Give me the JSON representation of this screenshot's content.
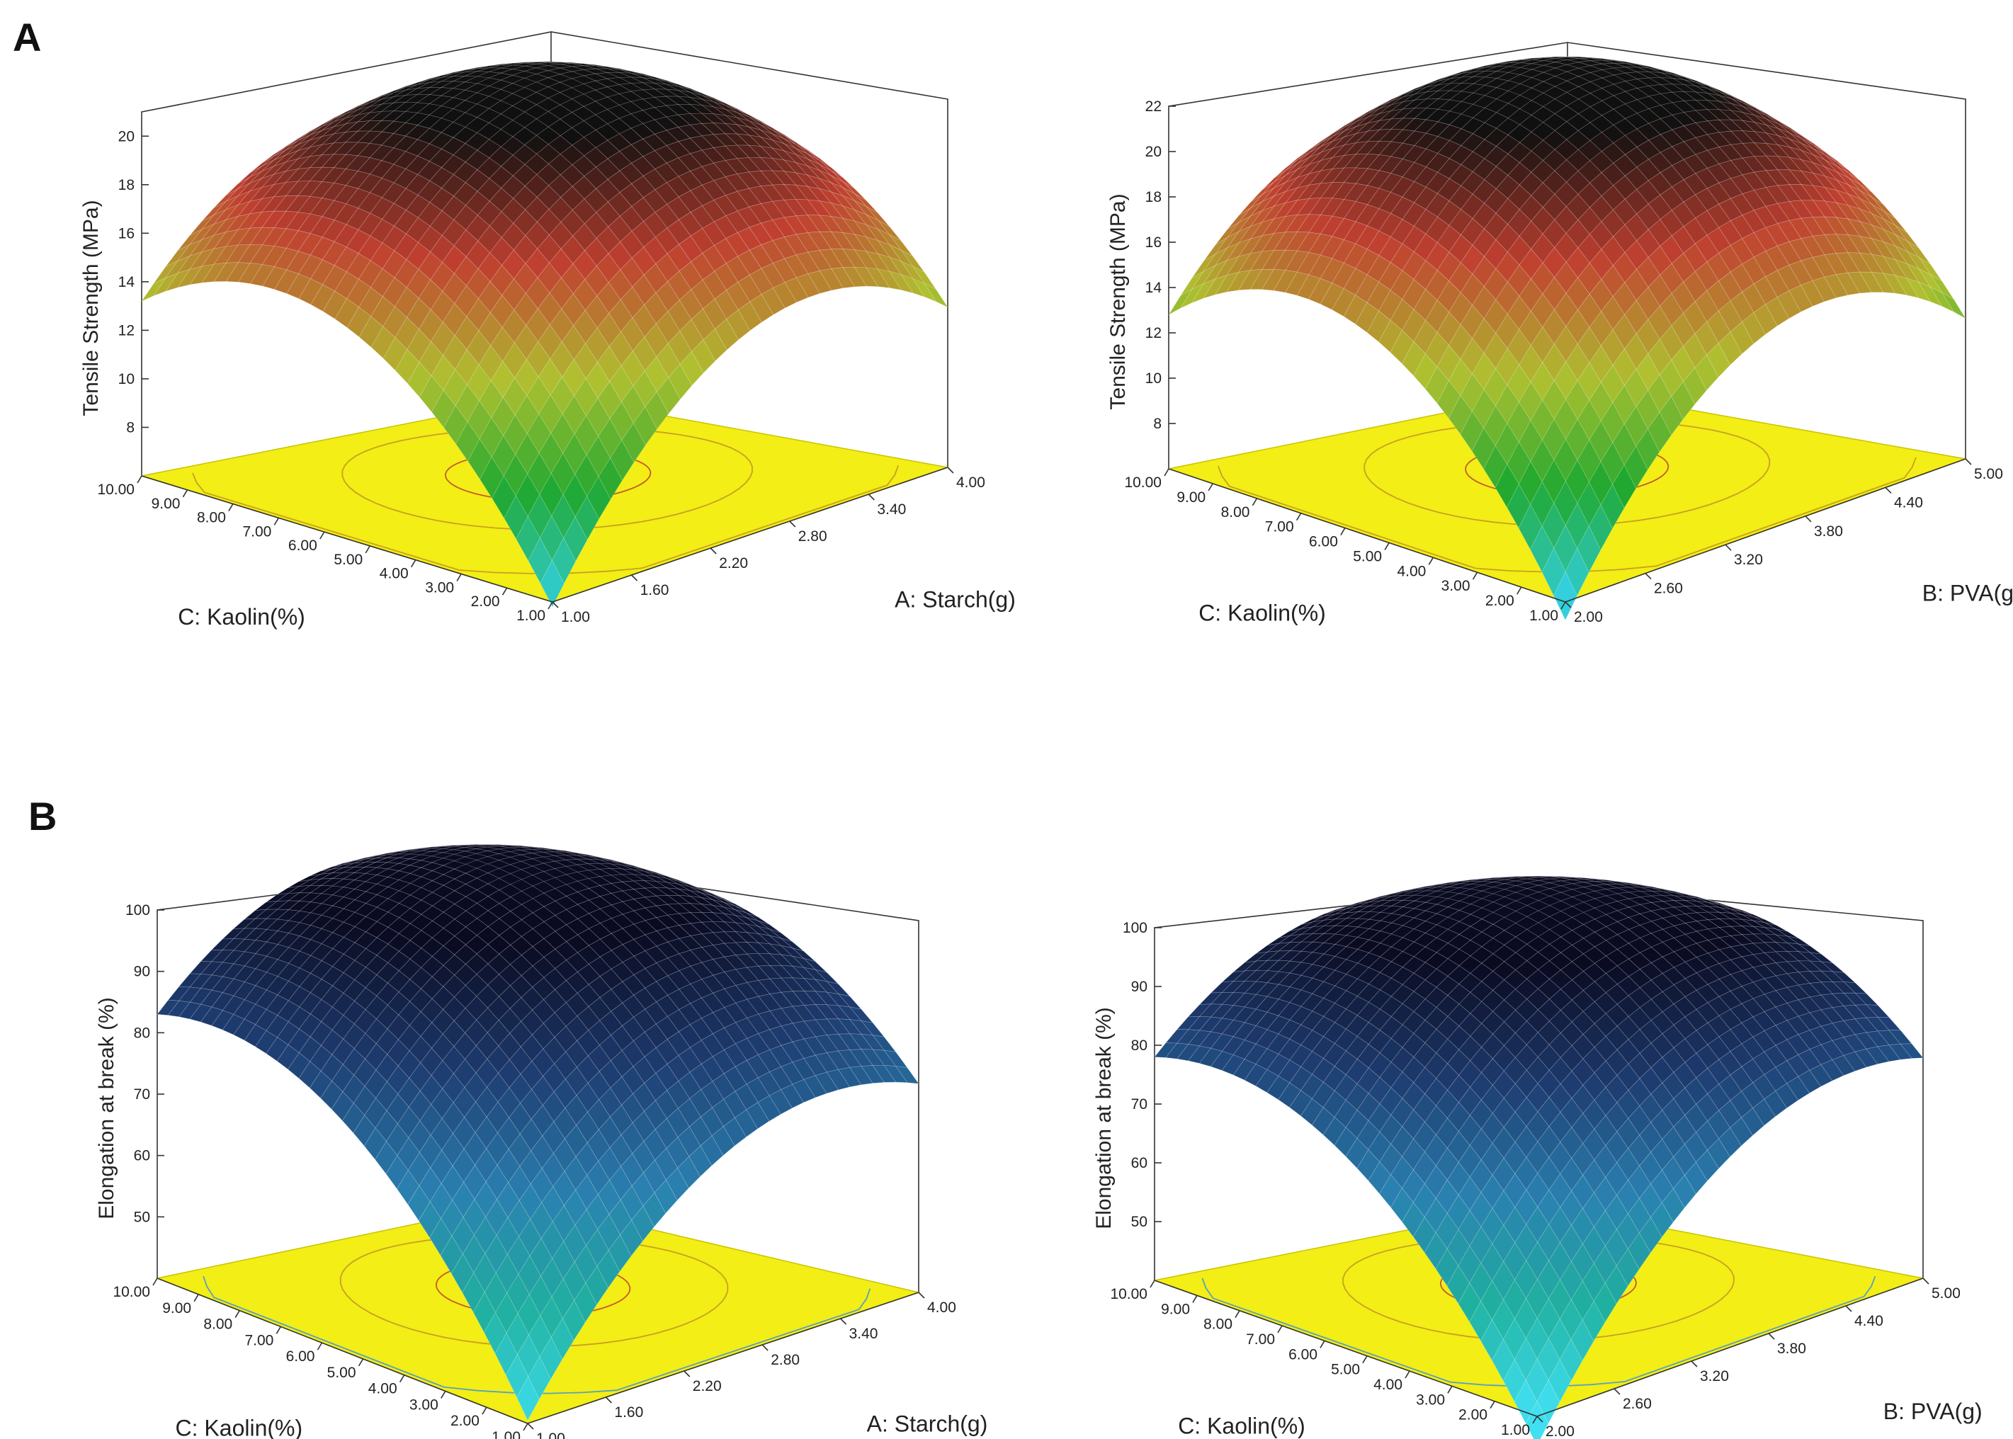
{
  "panel_labels": [
    "A",
    "B"
  ],
  "colors": {
    "floor": "#f2ee16",
    "floor_edge": "#c9c400",
    "contour_inner": "#c65a2a",
    "contour_outer": "#c9a020",
    "contour_blue": "#5aa0c0",
    "ts_colormap": [
      "#33d0e0",
      "#20a830",
      "#b0c030",
      "#c04030",
      "#101010"
    ],
    "el_colormap": [
      "#40e0f0",
      "#20b0a0",
      "#2a80b0",
      "#1e3c70",
      "#0a0a20"
    ]
  },
  "chart_data": [
    {
      "type": "surface",
      "panel": "A",
      "ylabel": "Tensile Strength (MPa)",
      "xlabel": "A: Starch(g)",
      "zlabel": "C: Kaolin(%)",
      "x_ticks": [
        "1.00",
        "1.60",
        "2.20",
        "2.80",
        "3.40",
        "4.00"
      ],
      "z_ticks": [
        "1.00",
        "2.00",
        "3.00",
        "4.00",
        "5.00",
        "6.00",
        "7.00",
        "8.00",
        "9.00",
        "10.00"
      ],
      "y_ticks": [
        "8",
        "10",
        "12",
        "14",
        "16",
        "18",
        "20"
      ],
      "xlim": [
        1,
        4
      ],
      "zlim": [
        1,
        10
      ],
      "ylim": [
        6,
        21
      ],
      "corner_values": {
        "front": 5.8,
        "left": 13.2,
        "right": 12.6,
        "back": 14.5
      },
      "peak": 21.0,
      "colormap": "ts"
    },
    {
      "type": "surface",
      "panel": "A",
      "ylabel": "Tensile Strength (MPa)",
      "xlabel": "B: PVA(g)",
      "zlabel": "C: Kaolin(%)",
      "x_ticks": [
        "2.00",
        "2.60",
        "3.20",
        "3.80",
        "4.40",
        "5.00"
      ],
      "z_ticks": [
        "1.00",
        "2.00",
        "3.00",
        "4.00",
        "5.00",
        "6.00",
        "7.00",
        "8.00",
        "9.00",
        "10.00"
      ],
      "y_ticks": [
        "8",
        "10",
        "12",
        "14",
        "16",
        "18",
        "20",
        "22"
      ],
      "xlim": [
        2,
        5
      ],
      "zlim": [
        1,
        10
      ],
      "ylim": [
        6,
        22
      ],
      "corner_values": {
        "front": 5.2,
        "left": 12.8,
        "right": 12.2,
        "back": 14.5
      },
      "peak": 22.0,
      "colormap": "ts"
    },
    {
      "type": "surface",
      "panel": "B",
      "ylabel": "Elongation at break (%)",
      "xlabel": "A: Starch(g)",
      "zlabel": "C: Kaolin(%)",
      "x_ticks": [
        "1.00",
        "1.60",
        "2.20",
        "2.80",
        "3.40",
        "4.00"
      ],
      "z_ticks": [
        "1.00",
        "2.00",
        "3.00",
        "4.00",
        "5.00",
        "6.00",
        "7.00",
        "8.00",
        "9.00",
        "10.00"
      ],
      "y_ticks": [
        "50",
        "60",
        "70",
        "80",
        "90",
        "100"
      ],
      "xlim": [
        1,
        4
      ],
      "zlim": [
        1,
        10
      ],
      "ylim": [
        40,
        100
      ],
      "corner_values": {
        "front": 40.5,
        "left": 83.0,
        "right": 74.0,
        "back": 88.0
      },
      "peak": 100.0,
      "colormap": "el"
    },
    {
      "type": "surface",
      "panel": "B",
      "ylabel": "Elongation at break (%)",
      "xlabel": "B: PVA(g)",
      "zlabel": "C: Kaolin(%)",
      "x_ticks": [
        "2.00",
        "2.60",
        "3.20",
        "3.80",
        "4.40",
        "5.00"
      ],
      "z_ticks": [
        "1.00",
        "2.00",
        "3.00",
        "4.00",
        "5.00",
        "6.00",
        "7.00",
        "8.00",
        "9.00",
        "10.00"
      ],
      "y_ticks": [
        "50",
        "60",
        "70",
        "80",
        "90",
        "100"
      ],
      "xlim": [
        2,
        5
      ],
      "zlim": [
        1,
        10
      ],
      "ylim": [
        40,
        100
      ],
      "corner_values": {
        "front": 35.0,
        "left": 78.0,
        "right": 77.5,
        "back": 84.0
      },
      "peak": 98.0,
      "colormap": "el"
    }
  ]
}
